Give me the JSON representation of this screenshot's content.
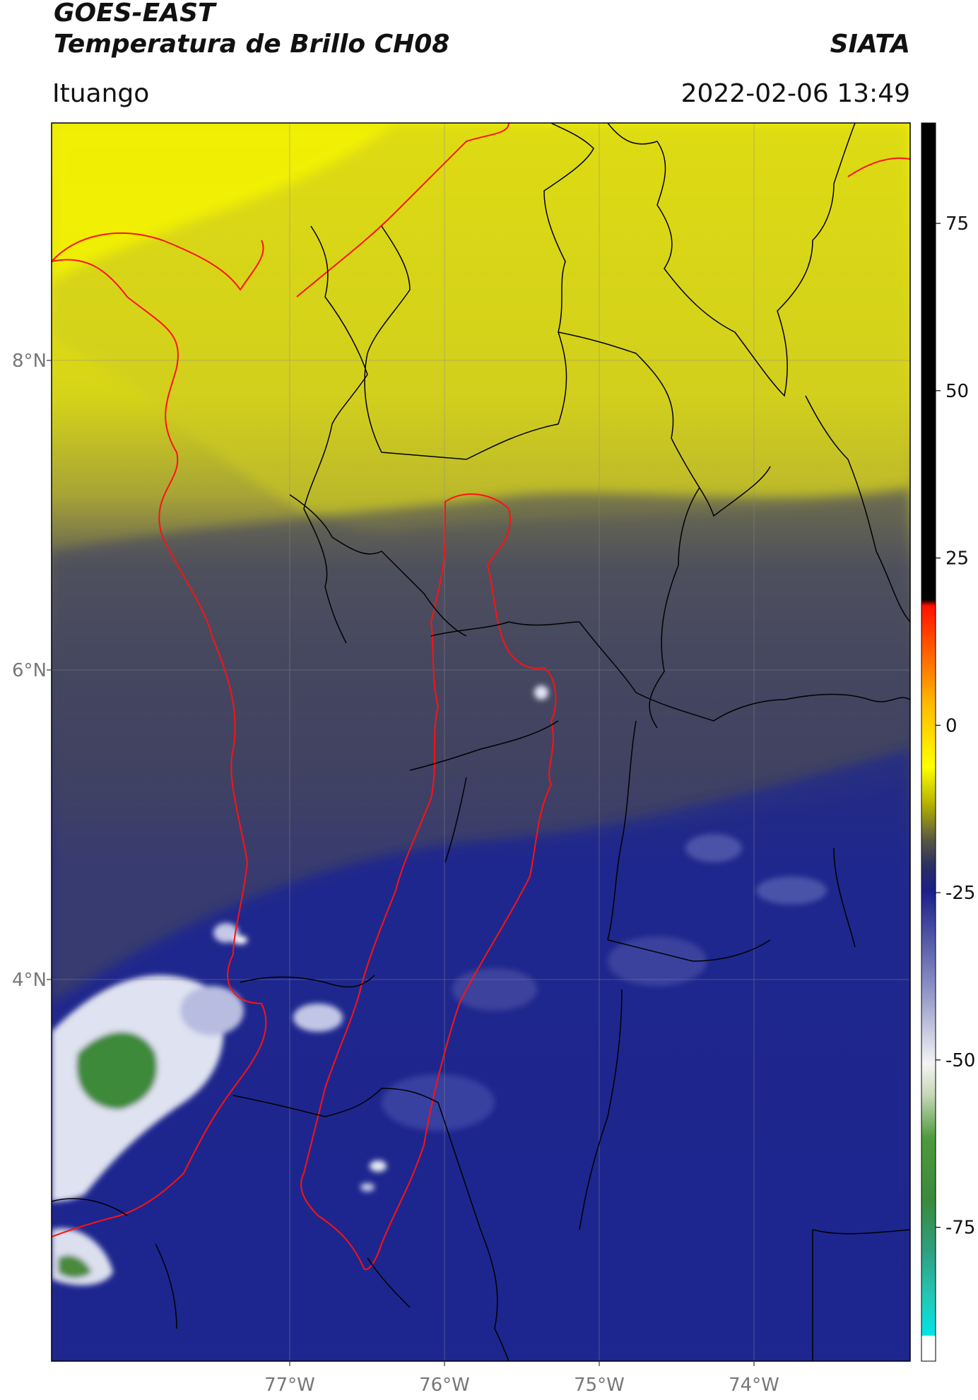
{
  "header": {
    "title_line1": "GOES-EAST",
    "title_line2": "Temperatura de Brillo CH08",
    "organization": "SIATA",
    "location": "Ituango",
    "datetime": "2022-02-06 13:49"
  },
  "map": {
    "lat_labels": [
      "8°N",
      "6°N",
      "4°N"
    ],
    "lon_labels": [
      "77°W",
      "76°W",
      "75°W",
      "74°W"
    ],
    "colorbar": {
      "tick_labels": [
        "75",
        "50",
        "25",
        "0",
        "-25",
        "-50",
        "-75"
      ],
      "tick_values": [
        75,
        50,
        25,
        0,
        -25,
        -50,
        -75
      ],
      "range": [
        -95,
        90
      ],
      "unit": ""
    },
    "colors": {
      "warm_yellow": "#f2f200",
      "olive": "#b8b430",
      "dark_gray": "#45465c",
      "navy": "#262c7a",
      "deep_blue": "#1b2690",
      "cold_white": "#e8eaf4",
      "cold_green": "#3e8a3a",
      "region_outline": "#ff1111",
      "borders": "#000000"
    }
  }
}
